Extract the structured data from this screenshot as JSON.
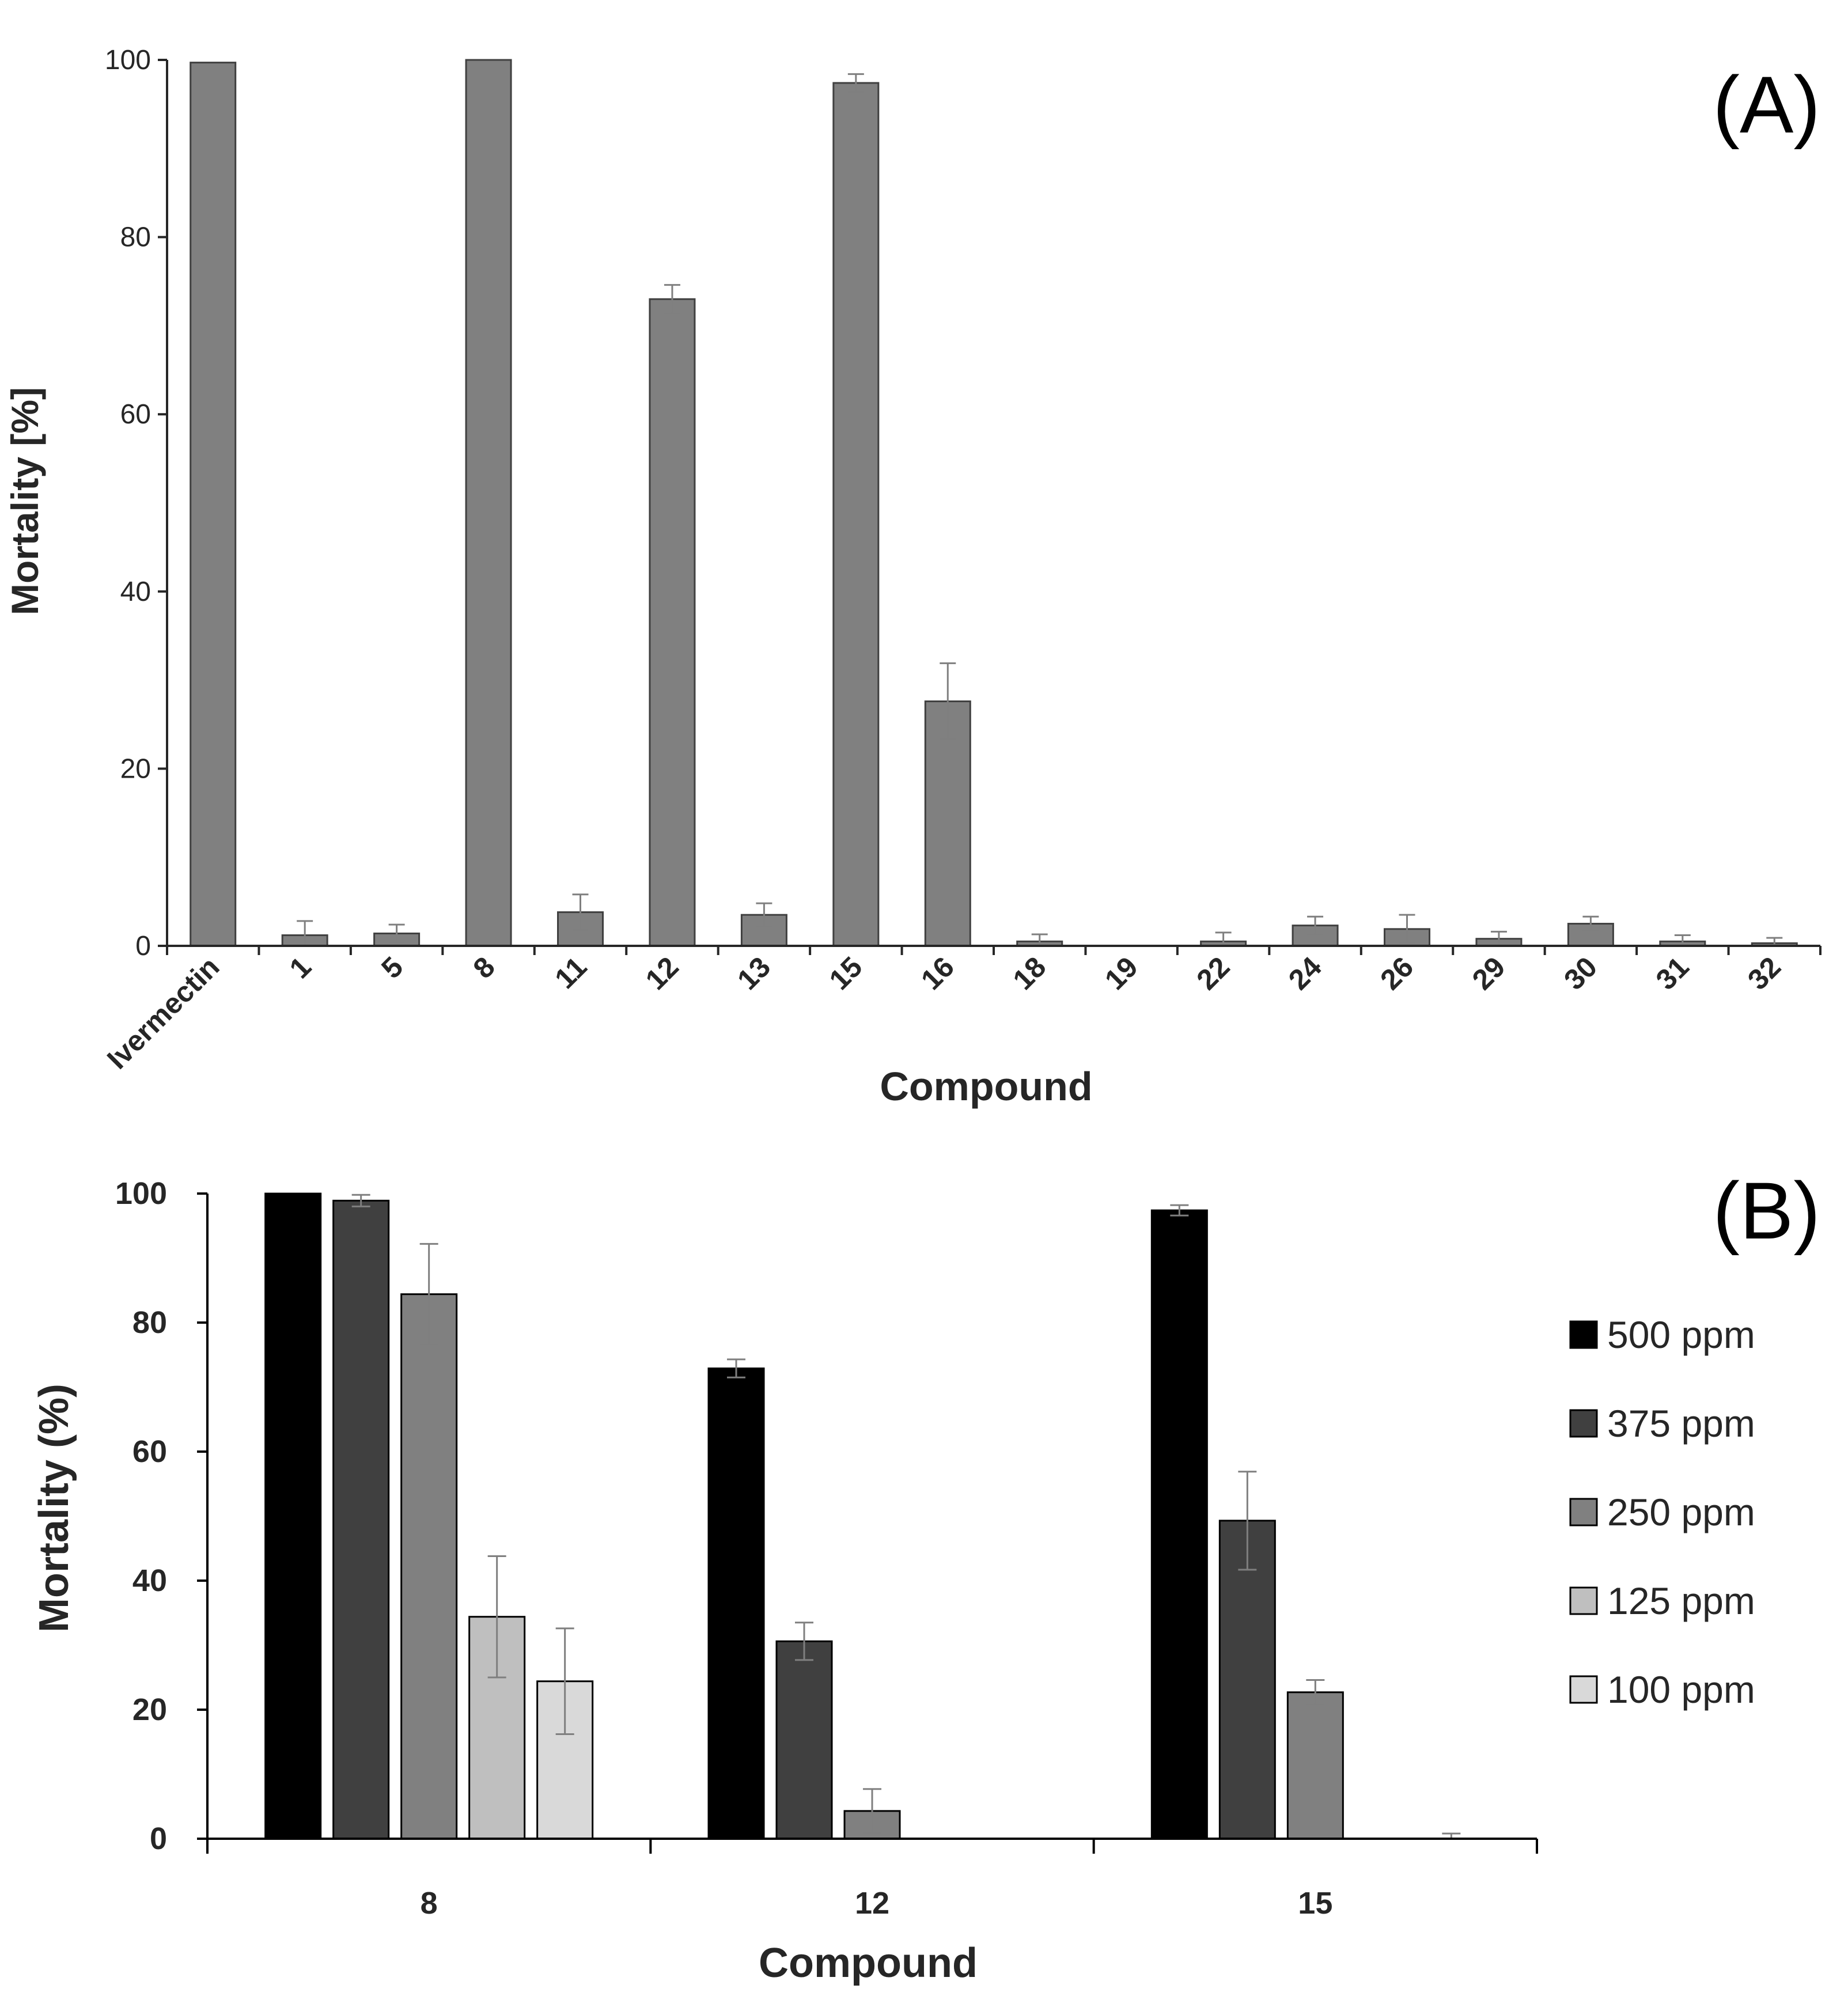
{
  "chart_data": [
    {
      "panel": "(A)",
      "type": "bar",
      "xlabel": "Compound",
      "ylabel": "Mortality [%]",
      "ylim": [
        0,
        100
      ],
      "yticks": [
        0,
        20,
        40,
        60,
        80,
        100
      ],
      "categories": [
        "Ivermectin",
        "1",
        "5",
        "8",
        "11",
        "12",
        "13",
        "15",
        "16",
        "18",
        "19",
        "22",
        "24",
        "26",
        "29",
        "30",
        "31",
        "32"
      ],
      "values": [
        99.7,
        1.2,
        1.4,
        100,
        3.8,
        73.0,
        3.5,
        97.4,
        27.6,
        0.5,
        0,
        0.5,
        2.3,
        1.9,
        0.8,
        2.5,
        0.5,
        0.3
      ],
      "errors": [
        0,
        1.6,
        1.0,
        0,
        2.0,
        1.6,
        1.3,
        1.0,
        4.3,
        0.8,
        0,
        1.0,
        1.0,
        1.6,
        0.8,
        0.8,
        0.7,
        0.6
      ],
      "bar_color": "#808080"
    },
    {
      "panel": "(B)",
      "type": "bar",
      "xlabel": "Compound",
      "ylabel": "Mortality (%)",
      "ylim": [
        0,
        100
      ],
      "yticks": [
        0,
        20,
        40,
        60,
        80,
        100
      ],
      "categories": [
        "8",
        "12",
        "15"
      ],
      "series": [
        {
          "name": "500 ppm",
          "color": "#000000",
          "values": [
            100,
            72.9,
            97.4
          ],
          "errors": [
            0,
            1.4,
            0.8
          ]
        },
        {
          "name": "375 ppm",
          "color": "#404040",
          "values": [
            98.9,
            30.6,
            49.3
          ],
          "errors": [
            0.9,
            2.9,
            7.6
          ]
        },
        {
          "name": "250 ppm",
          "color": "#808080",
          "values": [
            84.4,
            4.3,
            22.7
          ],
          "errors": [
            7.8,
            3.4,
            1.9
          ]
        },
        {
          "name": "125 ppm",
          "color": "#bfbfbf",
          "values": [
            34.4,
            0,
            0
          ],
          "errors": [
            9.4,
            0,
            0
          ]
        },
        {
          "name": "100 ppm",
          "color": "#d9d9d9",
          "values": [
            24.4,
            0,
            0
          ],
          "errors": [
            8.2,
            0,
            0.8
          ]
        }
      ],
      "legend_position": "right"
    }
  ]
}
